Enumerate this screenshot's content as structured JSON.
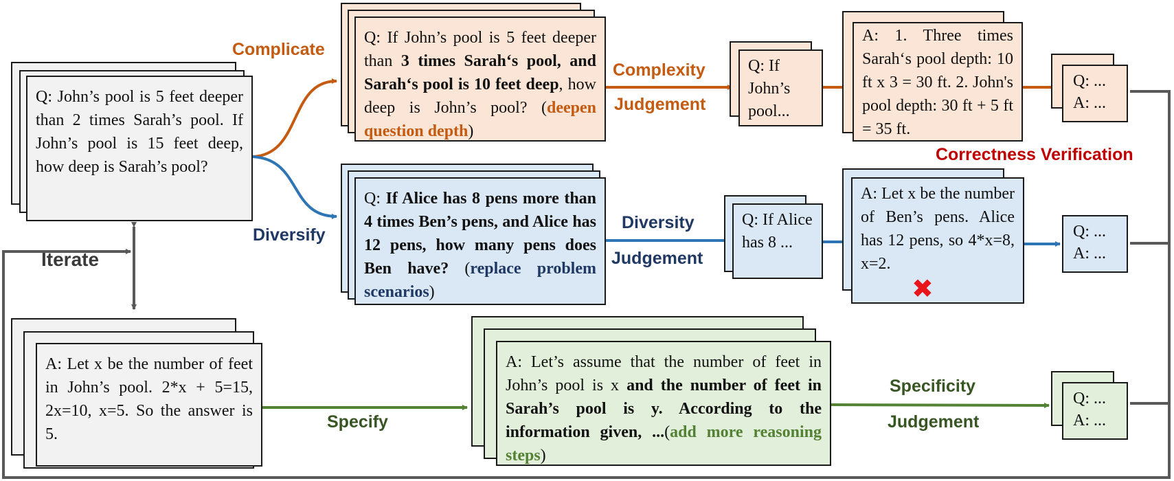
{
  "colors": {
    "complicate": "#c55a11",
    "diversify": "#2e75b6",
    "diversify_label": "#1f3864",
    "specify": "#548235",
    "specify_label": "#375623",
    "verification": "#c00000",
    "connector": "#595959"
  },
  "labels": {
    "complicate": "Complicate",
    "diversify": "Diversify",
    "specify": "Specify",
    "iterate": "Iterate",
    "complexity_1": "Complexity",
    "complexity_2": "Judgement",
    "diversity_1": "Diversity",
    "diversity_2": "Judgement",
    "specificity_1": "Specificity",
    "specificity_2": "Judgement",
    "correctness": "Correctness Verification"
  },
  "seed": {
    "question": "Q: John’s pool is 5 feet deeper than 2 times Sarah’s pool. If John’s pool is 15 feet deep, how deep is Sarah’s pool?",
    "answer": "A: Let x be the number of feet in John’s pool. 2*x + 5=15, 2x=10, x=5. So the answer is 5."
  },
  "complicated": {
    "q_prefix": "Q: If John’s pool is 5 feet deeper than ",
    "q_bold": "3 times Sarah‘s pool, and Sarah‘s pool is 10 feet deep",
    "q_suffix": ", how deep is John’s pool? (",
    "q_tag": "deepen question depth",
    "q_close": ")",
    "short_q": "Q: If John’s pool...",
    "answer": "A: 1. Three times Sarah‘s pool depth: 10 ft x 3 = 30 ft. 2. John's pool depth: 30 ft + 5 ft = 35 ft.",
    "result_q": "Q: ...",
    "result_a": "A: ..."
  },
  "diversified": {
    "q_prefix": "Q: ",
    "q_bold": "If Alice has 8 pens more than 4 times Ben’s pens, and Alice has 12 pens, how many pens does Ben have?",
    "q_open": " (",
    "q_tag": "replace problem scenarios",
    "q_close": ")",
    "short_q": "Q: If Alice has 8 ...",
    "answer": "A: Let x be the number of Ben’s pens. Alice has 12 pens, so 4*x=8, x=2.",
    "rejected_mark": "✖",
    "result_q": "Q: ...",
    "result_a": "A: ..."
  },
  "specified": {
    "a_prefix": "A: Let’s assume that the number of feet in John’s pool is x ",
    "a_bold": "and the number of feet in Sarah’s pool is y. According to the information given, ...",
    "a_open": "(",
    "a_tag": "add more reasoning steps",
    "a_close": ")",
    "result_q": "Q: ...",
    "result_a": "A: ..."
  }
}
